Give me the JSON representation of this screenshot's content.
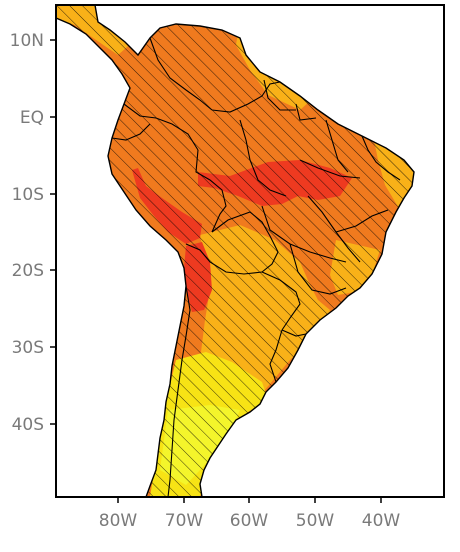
{
  "map": {
    "y_tick_labels": [
      "10N",
      "EQ",
      "10S",
      "20S",
      "30S",
      "40S"
    ],
    "x_tick_labels": [
      "80W",
      "70W",
      "60W",
      "50W",
      "40W"
    ],
    "colors": {
      "frame": "#000000",
      "tick_text": "#7a7a7a",
      "level_high": "#ee3a20",
      "level_mid_high": "#f07a1e",
      "level_mid": "#f9b118",
      "level_low": "#f7e315",
      "level_lowest": "#f4f52b",
      "hatch": "#000000",
      "borders": "#000000"
    },
    "hatching": "diagonal",
    "region": "South America"
  }
}
